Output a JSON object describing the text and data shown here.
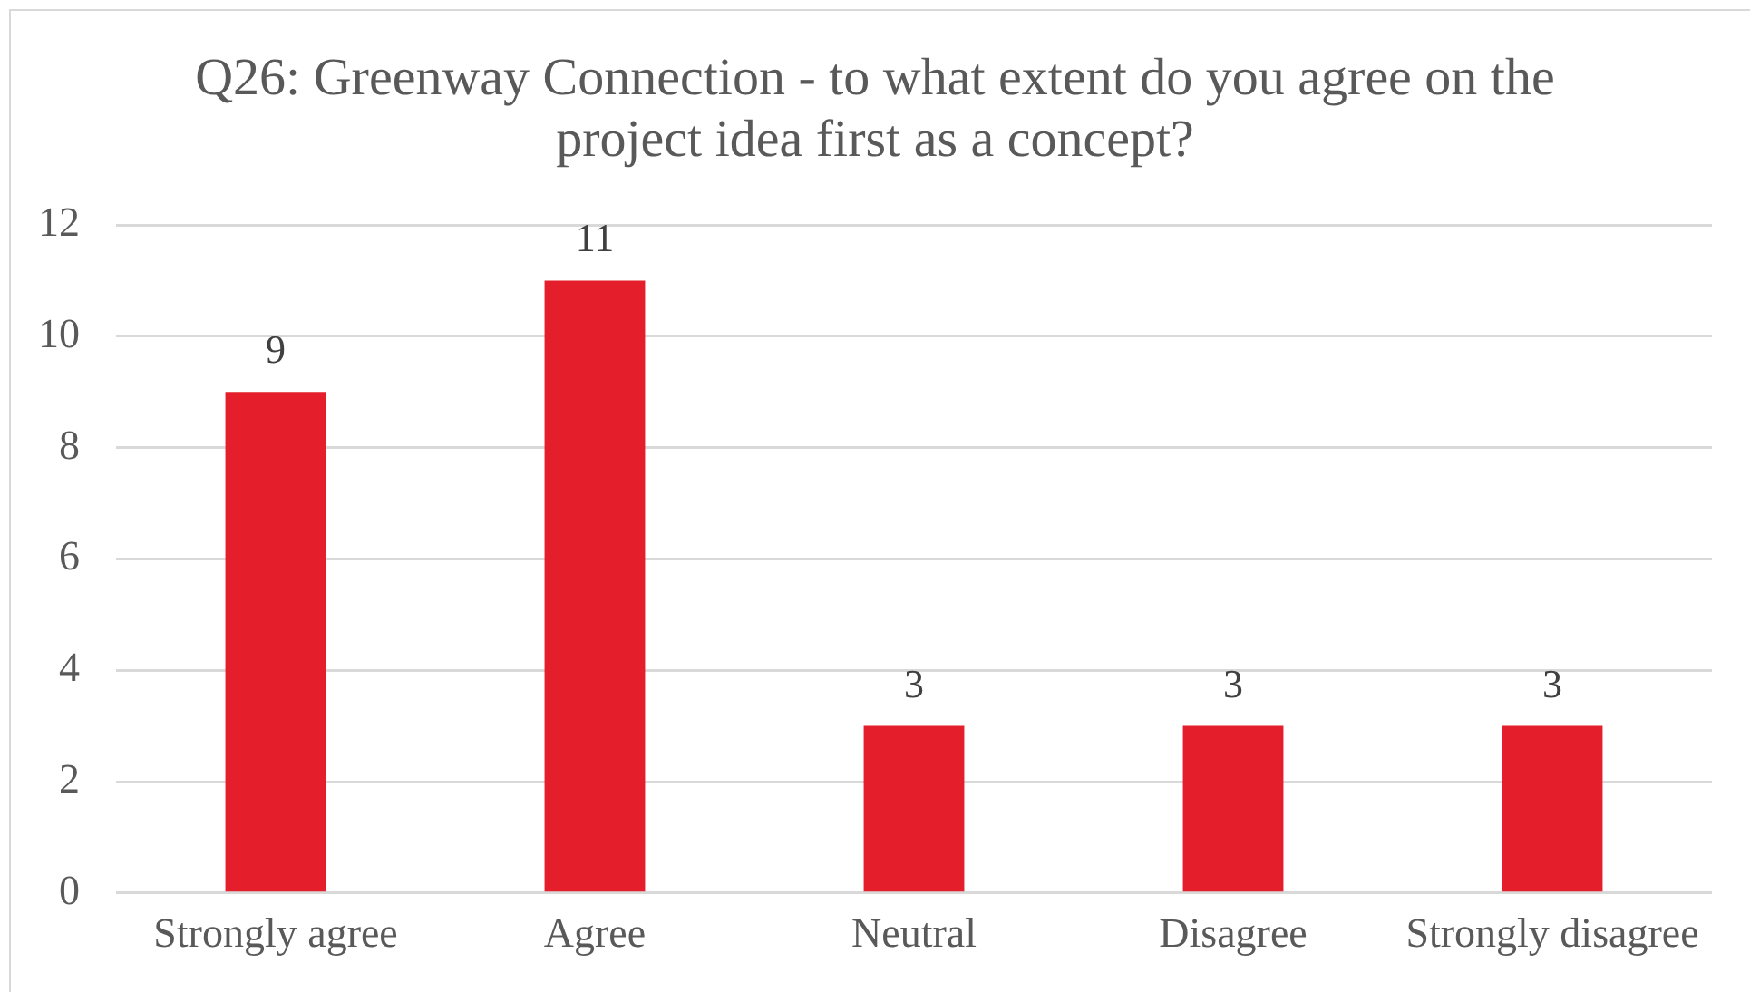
{
  "chart_data": {
    "type": "bar",
    "title": "Q26: Greenway Connection - to what extent do you agree on the project idea first as a concept?",
    "categories": [
      "Strongly agree",
      "Agree",
      "Neutral",
      "Disagree",
      "Strongly disagree"
    ],
    "values": [
      9,
      11,
      3,
      3,
      3
    ],
    "color": "#e41e2a",
    "ylim": [
      0,
      12
    ],
    "yticks": [
      0,
      2,
      4,
      6,
      8,
      10,
      12
    ],
    "grid": "y",
    "data_labels": true
  }
}
